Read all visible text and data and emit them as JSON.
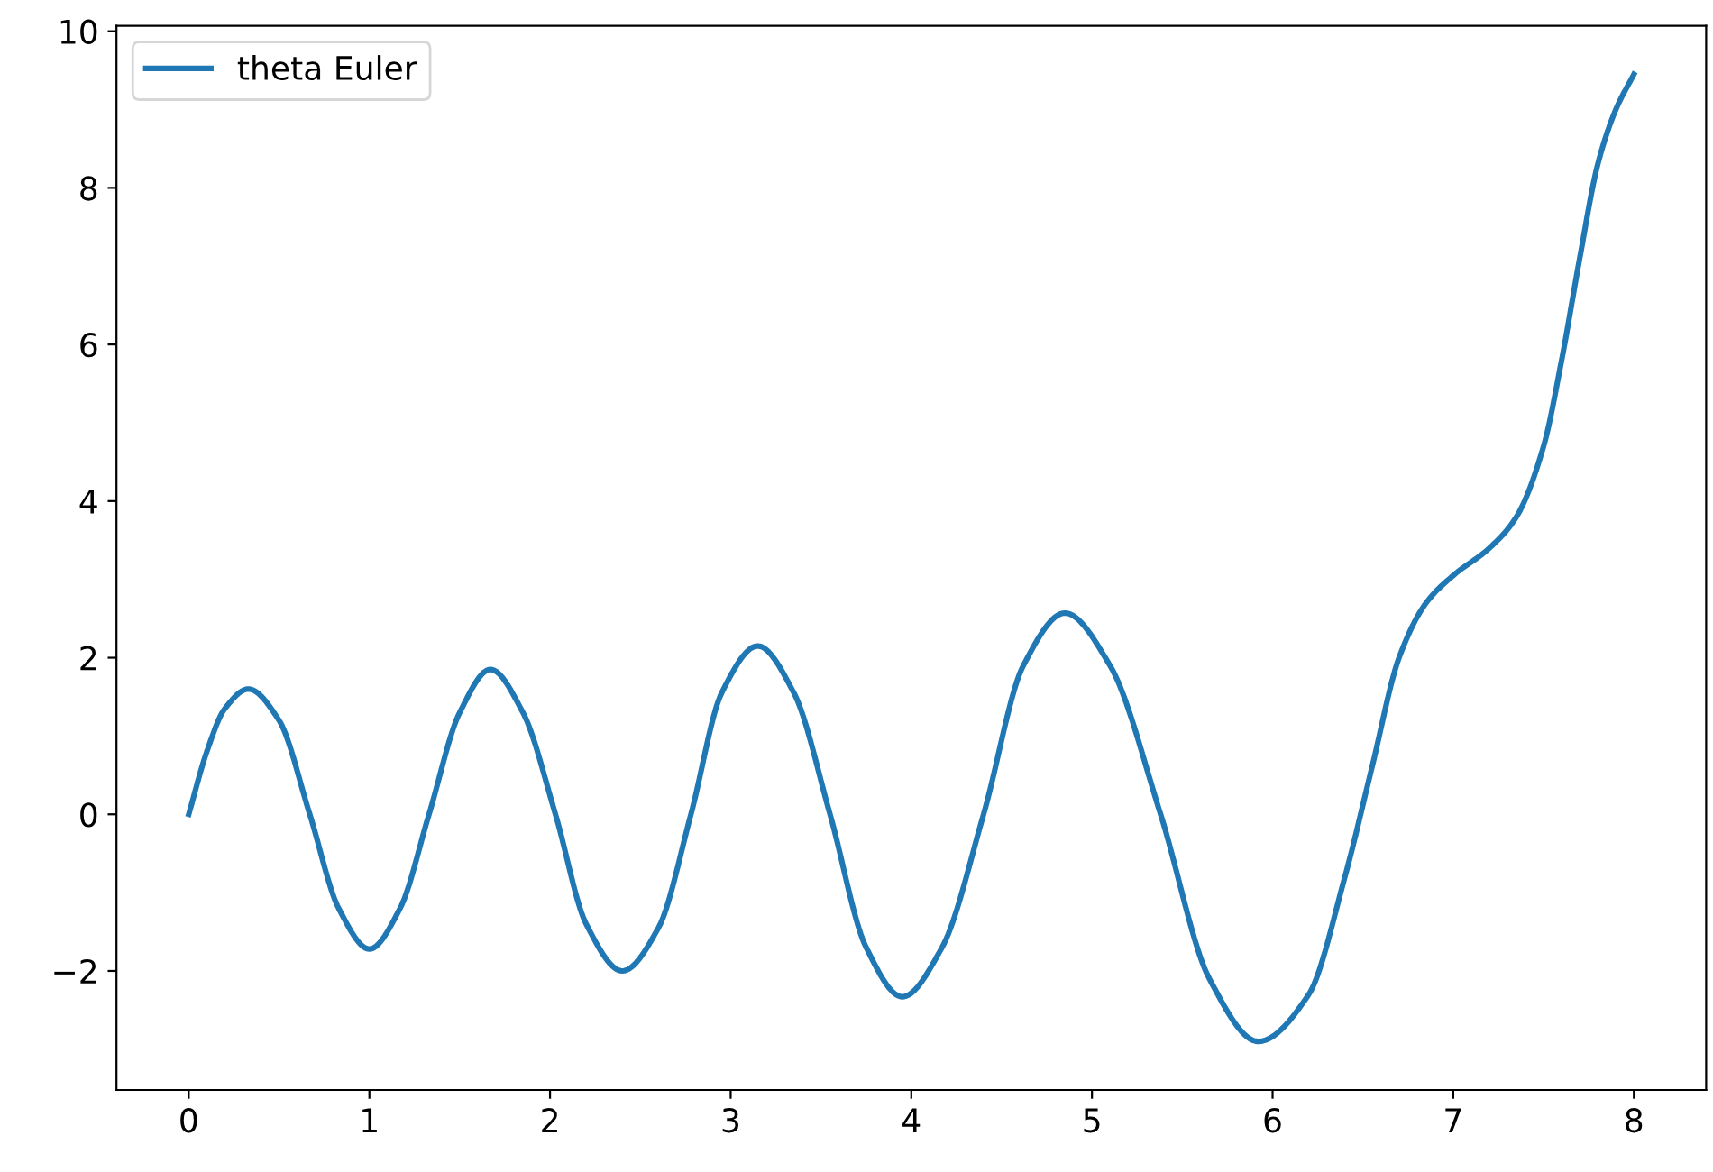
{
  "chart_data": {
    "type": "line",
    "xlim": [
      -0.4,
      8.4
    ],
    "ylim": [
      -3.52,
      10.07
    ],
    "xticks": [
      0,
      1,
      2,
      3,
      4,
      5,
      6,
      7,
      8
    ],
    "yticks": [
      {
        "value": -2,
        "label": "−2"
      },
      0,
      2,
      4,
      6,
      8,
      10
    ],
    "grid": false,
    "legend": "top left",
    "marker": "none",
    "line_style": "solid",
    "series": [
      {
        "name": "theta Euler",
        "color": "#1f77b4",
        "x": [
          0,
          0.1,
          0.2,
          0.33,
          0.5,
          0.67,
          0.83,
          1.0,
          1.17,
          1.33,
          1.5,
          1.67,
          1.85,
          2.03,
          2.2,
          2.4,
          2.6,
          2.78,
          2.95,
          3.15,
          3.35,
          3.55,
          3.75,
          3.95,
          4.17,
          4.4,
          4.62,
          4.85,
          5.1,
          5.38,
          5.65,
          5.92,
          6.2,
          6.4,
          6.55,
          6.7,
          6.85,
          7.0,
          7.2,
          7.35,
          7.5,
          7.6,
          7.7,
          7.8,
          7.9,
          8.0
        ],
        "values": [
          0,
          0.8,
          1.35,
          1.6,
          1.2,
          0,
          -1.2,
          -1.72,
          -1.2,
          0,
          1.3,
          1.85,
          1.3,
          0,
          -1.4,
          -2.0,
          -1.45,
          0,
          1.55,
          2.15,
          1.55,
          0,
          -1.7,
          -2.33,
          -1.7,
          0,
          1.9,
          2.57,
          1.9,
          0,
          -2.1,
          -2.9,
          -2.3,
          -0.8,
          0.6,
          2.0,
          2.7,
          3.05,
          3.4,
          3.8,
          4.7,
          5.8,
          7.1,
          8.3,
          9.0,
          9.45
        ]
      }
    ]
  }
}
